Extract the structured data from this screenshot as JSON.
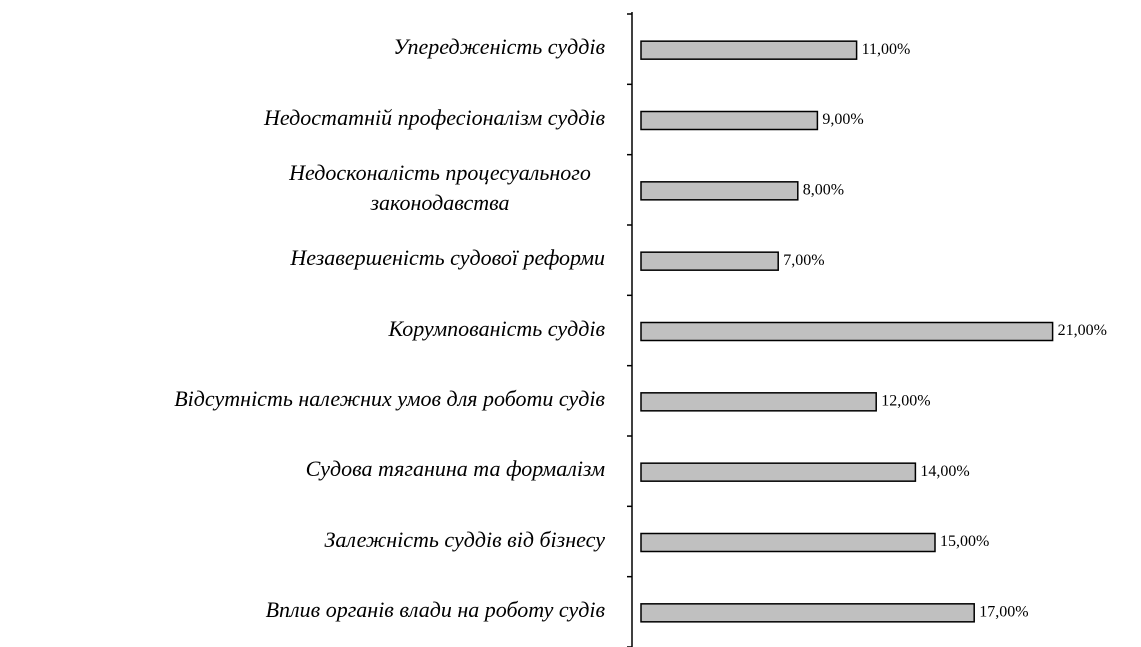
{
  "chart_data": {
    "type": "bar",
    "orientation": "horizontal",
    "color": "#c0c0c0",
    "categories": [
      "Упередженість суддів",
      "Недостатній професіоналізм суддів",
      "Недосконалість процесуального\nзаконодавства",
      "Незавершеність судової реформи",
      "Корумпованість суддів",
      "Відсутність належних умов для роботи судів",
      "Судова тяганина та формалізм",
      "Залежність суддів від бізнесу",
      "Вплив органів влади на роботу судів"
    ],
    "values": [
      11,
      9,
      8,
      7,
      21,
      12,
      14,
      15,
      17
    ],
    "value_labels": [
      "11,00%",
      "9,00%",
      "8,00%",
      "7,00%",
      "21,00%",
      "12,00%",
      "14,00%",
      "15,00%",
      "17,00%"
    ]
  }
}
